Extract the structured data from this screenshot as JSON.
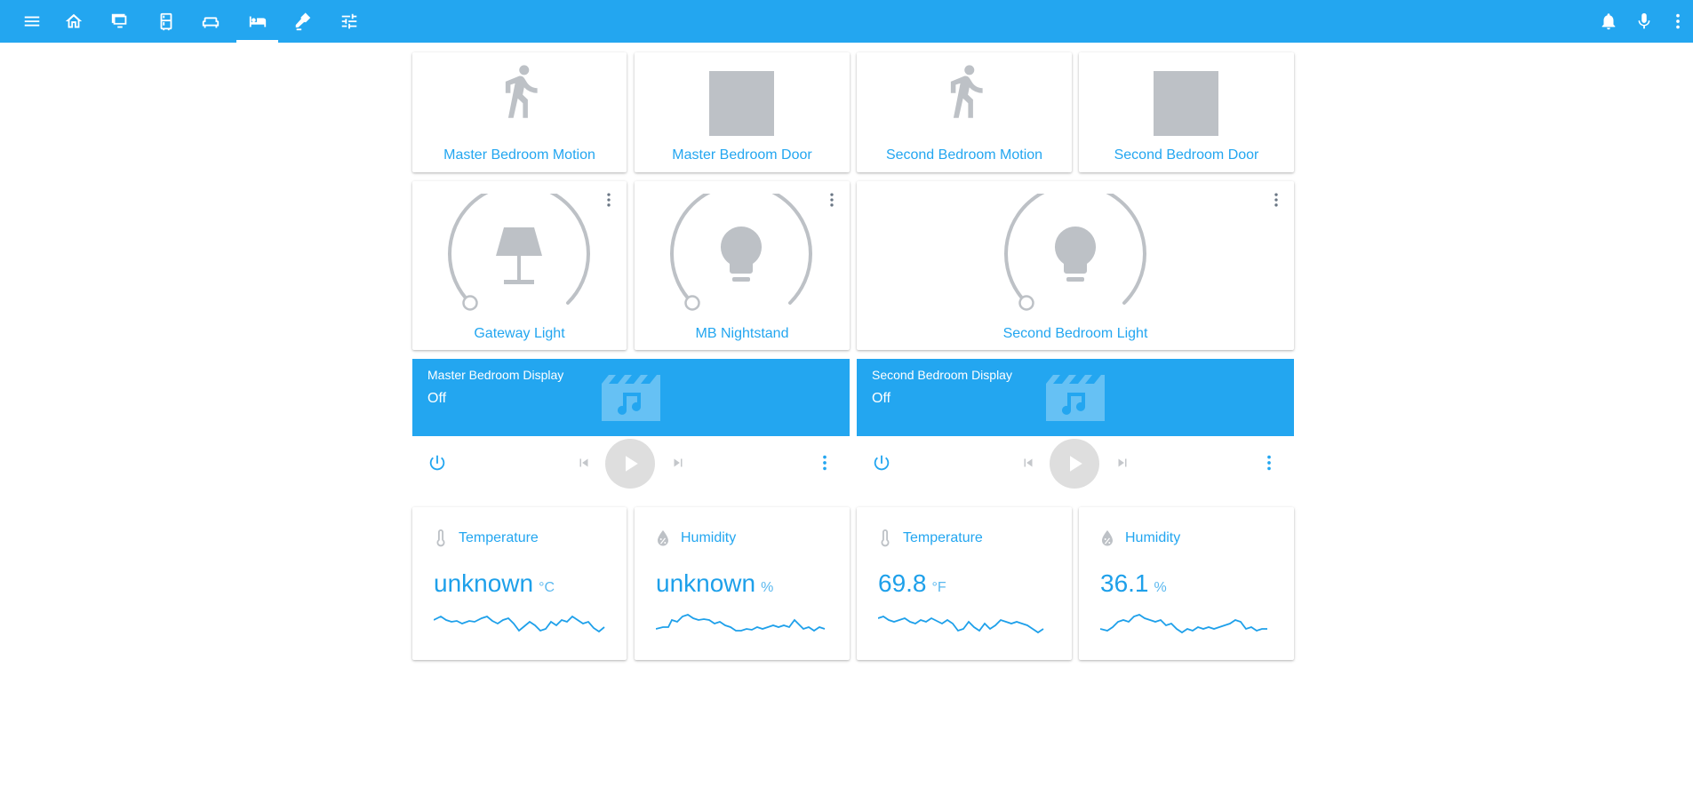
{
  "toolbar": {
    "tabs": [
      "menu-icon",
      "home-icon",
      "monitor-icon",
      "fridge-icon",
      "sofa-icon",
      "bed-icon",
      "cctv-icon",
      "tune-icon"
    ],
    "active_tab": "bed-icon",
    "actions": [
      "bell-icon",
      "microphone-icon",
      "more-vert-icon"
    ],
    "color": "#23a6f0"
  },
  "binary_sensors": [
    {
      "name": "Master Bedroom Motion",
      "icon": "walk-icon"
    },
    {
      "name": "Master Bedroom Door",
      "icon": "square-icon"
    },
    {
      "name": "Second Bedroom Motion",
      "icon": "walk-icon"
    },
    {
      "name": "Second Bedroom Door",
      "icon": "square-icon"
    }
  ],
  "lights": [
    {
      "name": "Gateway Light",
      "icon": "lamp-icon",
      "state": "off"
    },
    {
      "name": "MB Nightstand",
      "icon": "lightbulb-icon",
      "state": "off"
    },
    {
      "name": "Second Bedroom Light",
      "icon": "lightbulb-icon",
      "state": "off"
    }
  ],
  "media_players": [
    {
      "title": "Master Bedroom Display",
      "state": "Off",
      "icon": "movie-music-icon"
    },
    {
      "title": "Second Bedroom Display",
      "state": "Off",
      "icon": "movie-music-icon"
    }
  ],
  "sensors": [
    {
      "label": "Temperature",
      "value": "unknown",
      "unit": "°C",
      "icon": "thermometer-icon"
    },
    {
      "label": "Humidity",
      "value": "unknown",
      "unit": "%",
      "icon": "water-percent-icon"
    },
    {
      "label": "Temperature",
      "value": "69.8",
      "unit": "°F",
      "icon": "thermometer-icon"
    },
    {
      "label": "Humidity",
      "value": "36.1",
      "unit": "%",
      "icon": "water-percent-icon"
    }
  ],
  "colors": {
    "accent": "#23a6f0",
    "inactive_icon": "#bdc1c6",
    "card_bg": "#ffffff"
  }
}
